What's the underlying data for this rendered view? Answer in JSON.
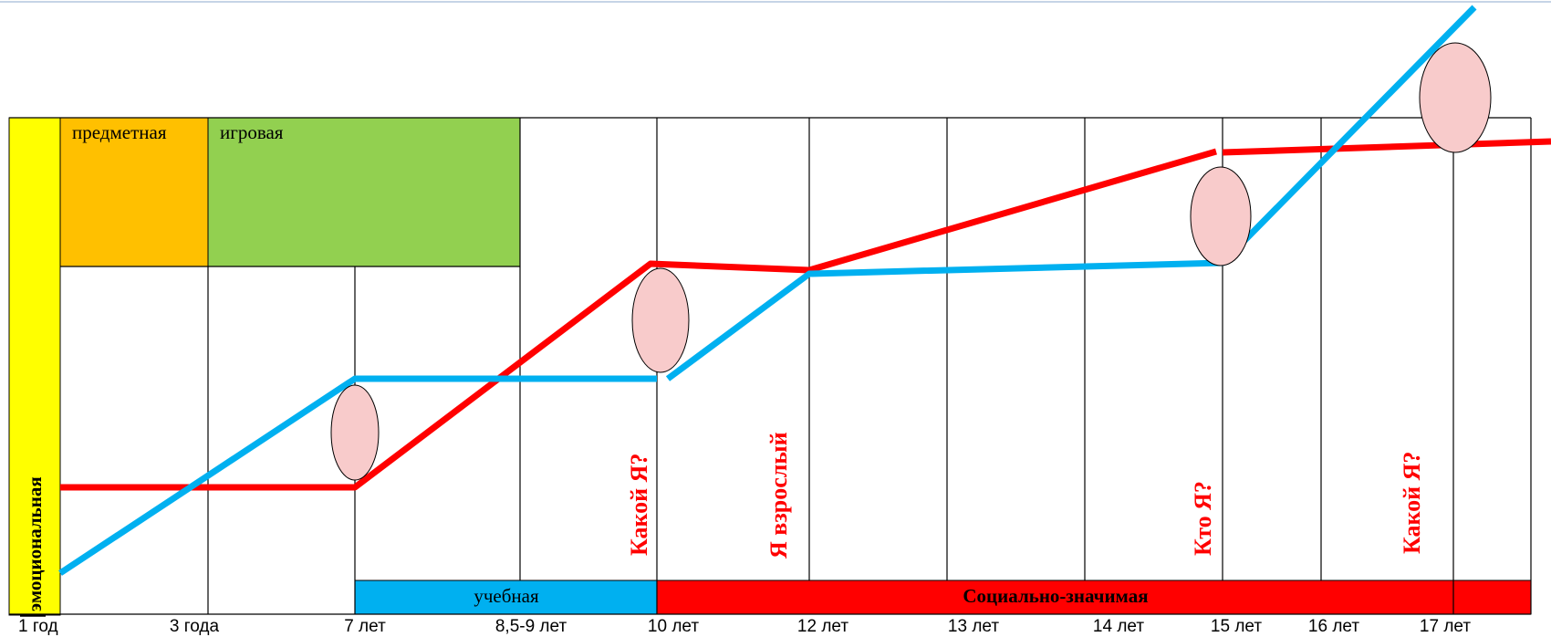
{
  "diagram": {
    "activities": {
      "emotional": "эмоциональная",
      "object": "предметная",
      "play": "игровая",
      "study": "учебная",
      "social": "Социально-значимая"
    },
    "age_labels": [
      "1 год",
      "3 года",
      "7 лет",
      "8,5-9 лет",
      "10 лет",
      "12 лет",
      "13 лет",
      "14 лет",
      "15 лет",
      "16 лет",
      "17 лет"
    ],
    "questions": {
      "q10": "Какой Я?",
      "q12": "Я взрослый",
      "q15": "Кто Я?",
      "q17": "Какой Я?"
    },
    "colors": {
      "emotional": "#ffff00",
      "object": "#ffc000",
      "play": "#92d050",
      "study": "#00b0f0",
      "social": "#ff0000",
      "red_line": "#ff0000",
      "blue_line": "#00b0f0",
      "crisis_ellipse": "#f8cbcb"
    }
  }
}
